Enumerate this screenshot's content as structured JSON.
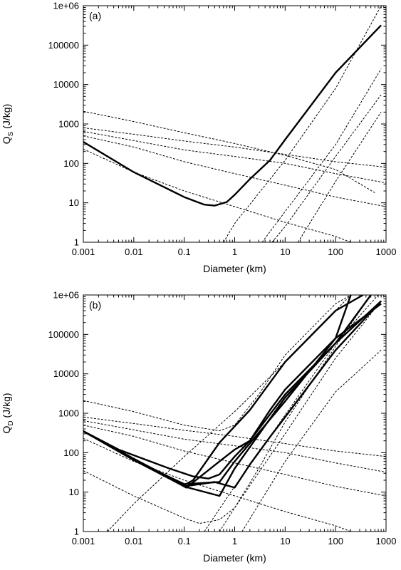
{
  "chart_data": [
    {
      "type": "line",
      "panel_label": "(a)",
      "xlabel": "Diameter (km)",
      "ylabel_main": "Q",
      "ylabel_sub": "S",
      "ylabel_suffix": " (J/kg)",
      "x_scale": "log",
      "y_scale": "log",
      "xlim": [
        0.001,
        1000
      ],
      "ylim": [
        1,
        1000000
      ],
      "x_ticks": [
        "0.001",
        "0.01",
        "0.1",
        "1",
        "10",
        "100",
        "1000"
      ],
      "y_ticks": [
        "1",
        "10",
        "100",
        "1000",
        "10000",
        "100000",
        "1e+06"
      ],
      "grid": false,
      "series": [
        {
          "style": "thin",
          "points": [
            [
              0.001,
              2100
            ],
            [
              0.01,
              1150
            ],
            [
              0.1,
              600
            ],
            [
              1,
              320
            ],
            [
              10,
              160
            ],
            [
              100,
              70
            ],
            [
              600,
              18
            ]
          ]
        },
        {
          "style": "thin",
          "points": [
            [
              0.001,
              800
            ],
            [
              0.01,
              550
            ],
            [
              0.1,
              370
            ],
            [
              1,
              260
            ],
            [
              10,
              170
            ],
            [
              100,
              110
            ],
            [
              1000,
              80
            ]
          ]
        },
        {
          "style": "thin",
          "points": [
            [
              0.001,
              650
            ],
            [
              0.01,
              380
            ],
            [
              0.1,
              220
            ],
            [
              1,
              150
            ],
            [
              10,
              100
            ],
            [
              100,
              55
            ],
            [
              1000,
              32
            ]
          ]
        },
        {
          "style": "thin",
          "points": [
            [
              0.001,
              500
            ],
            [
              0.01,
              260
            ],
            [
              0.1,
              110
            ],
            [
              1,
              55
            ],
            [
              10,
              28
            ],
            [
              100,
              14
            ],
            [
              1000,
              8
            ]
          ]
        },
        {
          "style": "thin",
          "points": [
            [
              0.001,
              230
            ],
            [
              0.01,
              60
            ],
            [
              0.1,
              20
            ],
            [
              1,
              8
            ],
            [
              10,
              3.2
            ],
            [
              100,
              1.4
            ],
            [
              200,
              1
            ]
          ]
        },
        {
          "style": "thin",
          "points": [
            [
              0.6,
              1
            ],
            [
              1,
              3
            ],
            [
              10,
              120
            ],
            [
              100,
              8000
            ],
            [
              800,
              1000000
            ]
          ]
        },
        {
          "style": "thin",
          "points": [
            [
              3.5,
              1
            ],
            [
              10,
              6
            ],
            [
              100,
              300
            ],
            [
              800,
              25000
            ]
          ]
        },
        {
          "style": "thin",
          "points": [
            [
              5.5,
              1
            ],
            [
              10,
              2.5
            ],
            [
              100,
              150
            ],
            [
              800,
              5500
            ]
          ]
        },
        {
          "style": "thin",
          "points": [
            [
              18,
              1
            ],
            [
              100,
              35
            ],
            [
              800,
              2000
            ]
          ]
        },
        {
          "style": "thick",
          "points": [
            [
              0.001,
              350
            ],
            [
              0.01,
              60
            ],
            [
              0.1,
              14
            ],
            [
              0.25,
              9
            ],
            [
              0.4,
              8.5
            ],
            [
              0.7,
              10.5
            ],
            [
              1,
              16
            ],
            [
              2,
              40
            ],
            [
              5,
              120
            ],
            [
              10,
              400
            ],
            [
              100,
              20000
            ],
            [
              800,
              320000
            ]
          ]
        }
      ]
    },
    {
      "type": "line",
      "panel_label": "(b)",
      "xlabel": "Diameter (km)",
      "ylabel_main": "Q",
      "ylabel_sub": "D",
      "ylabel_suffix": " (J/kg)",
      "x_scale": "log",
      "y_scale": "log",
      "xlim": [
        0.001,
        1000
      ],
      "ylim": [
        1,
        1000000
      ],
      "x_ticks": [
        "0.001",
        "0.01",
        "0.1",
        "1",
        "10",
        "100",
        "1000"
      ],
      "y_ticks": [
        "1",
        "10",
        "100",
        "1000",
        "10000",
        "100000",
        "1e+06"
      ],
      "grid": false,
      "series": [
        {
          "style": "thin",
          "points": [
            [
              0.001,
              2100
            ],
            [
              0.01,
              1100
            ],
            [
              0.1,
              500
            ],
            [
              0.5,
              360
            ],
            [
              1,
              500
            ],
            [
              3,
              3000
            ],
            [
              10,
              30000
            ],
            [
              100,
              600000
            ],
            [
              200,
              1000000
            ]
          ]
        },
        {
          "style": "thin",
          "points": [
            [
              0.001,
              800
            ],
            [
              0.01,
              550
            ],
            [
              0.1,
              370
            ],
            [
              1,
              260
            ],
            [
              10,
              170
            ],
            [
              100,
              110
            ],
            [
              1000,
              80
            ]
          ]
        },
        {
          "style": "thin",
          "points": [
            [
              0.001,
              650
            ],
            [
              0.01,
              380
            ],
            [
              0.1,
              220
            ],
            [
              1,
              150
            ],
            [
              10,
              100
            ],
            [
              100,
              55
            ],
            [
              1000,
              32
            ]
          ]
        },
        {
          "style": "thin",
          "points": [
            [
              0.001,
              500
            ],
            [
              0.01,
              260
            ],
            [
              0.1,
              110
            ],
            [
              1,
              55
            ],
            [
              10,
              28
            ],
            [
              100,
              14
            ],
            [
              1000,
              8
            ]
          ]
        },
        {
          "style": "thin",
          "points": [
            [
              0.001,
              230
            ],
            [
              0.01,
              60
            ],
            [
              0.1,
              20
            ],
            [
              1,
              8
            ],
            [
              10,
              3.2
            ],
            [
              100,
              1.4
            ],
            [
              200,
              1
            ]
          ]
        },
        {
          "style": "thin",
          "points": [
            [
              0.001,
              35
            ],
            [
              0.01,
              8
            ],
            [
              0.1,
              2.2
            ],
            [
              0.2,
              1.6
            ],
            [
              0.5,
              2
            ],
            [
              1,
              4
            ],
            [
              3,
              40
            ],
            [
              10,
              600
            ],
            [
              100,
              50000
            ],
            [
              500,
              1000000
            ]
          ]
        },
        {
          "style": "thin",
          "points": [
            [
              0.003,
              1
            ],
            [
              0.01,
              5
            ],
            [
              0.1,
              80
            ],
            [
              1,
              1100
            ],
            [
              10,
              20000
            ],
            [
              100,
              400000
            ],
            [
              200,
              1000000
            ]
          ]
        },
        {
          "style": "thin",
          "points": [
            [
              0.25,
              1
            ],
            [
              1,
              14
            ],
            [
              10,
              900
            ],
            [
              100,
              60000
            ],
            [
              700,
              1000000
            ]
          ]
        },
        {
          "style": "thin",
          "points": [
            [
              0.5,
              1
            ],
            [
              1,
              4
            ],
            [
              10,
              300
            ],
            [
              100,
              25000
            ],
            [
              800,
              700000
            ]
          ]
        },
        {
          "style": "thin",
          "points": [
            [
              1.4,
              1
            ],
            [
              10,
              60
            ],
            [
              100,
              3500
            ],
            [
              800,
              40000
            ]
          ]
        },
        {
          "style": "thick",
          "points": [
            [
              0.001,
              350
            ],
            [
              0.005,
              120
            ],
            [
              0.05,
              40
            ],
            [
              0.15,
              25
            ],
            [
              0.3,
              22
            ],
            [
              0.5,
              28
            ],
            [
              1,
              80
            ],
            [
              2,
              200
            ],
            [
              5,
              1200
            ],
            [
              10,
              4000
            ],
            [
              100,
              80000
            ],
            [
              200,
              1000000
            ]
          ]
        },
        {
          "style": "thick",
          "points": [
            [
              0.001,
              350
            ],
            [
              0.01,
              70
            ],
            [
              0.1,
              15
            ],
            [
              0.15,
              20
            ],
            [
              0.5,
              180
            ],
            [
              2,
              1200
            ],
            [
              10,
              20000
            ],
            [
              100,
              400000
            ],
            [
              350,
              1000000
            ]
          ]
        },
        {
          "style": "thick",
          "points": [
            [
              0.001,
              350
            ],
            [
              0.01,
              70
            ],
            [
              0.11,
              13
            ],
            [
              0.5,
              60
            ],
            [
              1,
              120
            ],
            [
              2,
              200
            ],
            [
              10,
              3000
            ],
            [
              100,
              60000
            ],
            [
              500,
              1000000
            ]
          ]
        },
        {
          "style": "thick",
          "points": [
            [
              0.001,
              350
            ],
            [
              0.01,
              70
            ],
            [
              0.12,
              13
            ],
            [
              0.5,
              8
            ],
            [
              1,
              40
            ],
            [
              10,
              2500
            ],
            [
              100,
              60000
            ],
            [
              800,
              700000
            ]
          ]
        },
        {
          "style": "thick",
          "points": [
            [
              0.001,
              350
            ],
            [
              0.01,
              65
            ],
            [
              0.1,
              16
            ],
            [
              0.5,
              18
            ],
            [
              1,
              60
            ],
            [
              10,
              2000
            ],
            [
              100,
              80000
            ],
            [
              800,
              600000
            ]
          ]
        },
        {
          "style": "thick",
          "points": [
            [
              0.001,
              350
            ],
            [
              0.01,
              65
            ],
            [
              0.1,
              14
            ],
            [
              0.4,
              18
            ],
            [
              1,
              13
            ],
            [
              2,
              50
            ],
            [
              5,
              250
            ],
            [
              10,
              800
            ],
            [
              100,
              40000
            ],
            [
              800,
              700000
            ]
          ]
        }
      ]
    }
  ]
}
